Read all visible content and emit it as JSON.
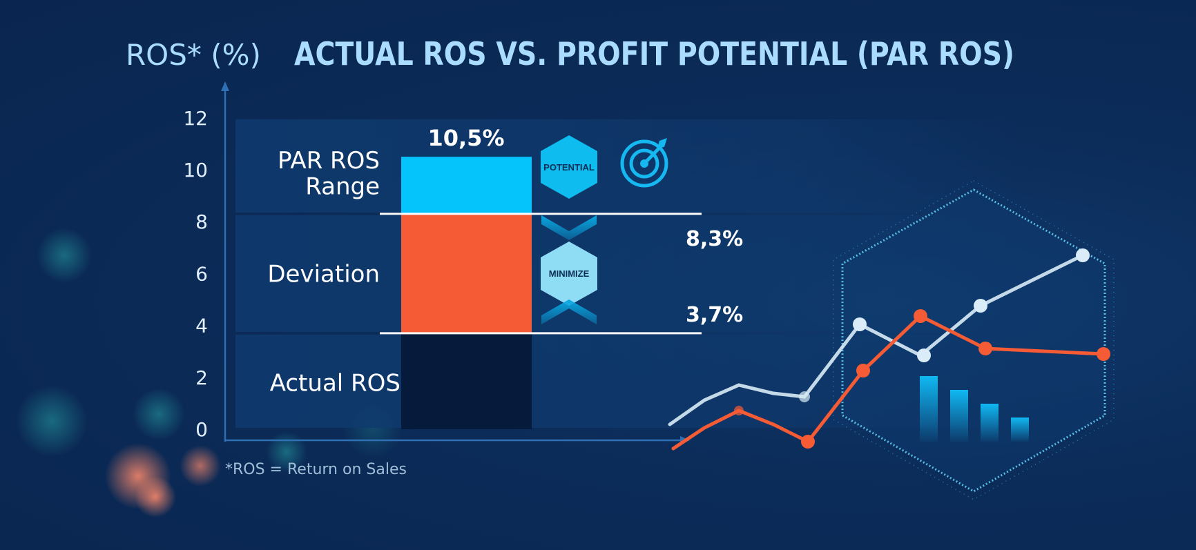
{
  "header": {
    "axis_title": "ROS* (%)",
    "title": "ACTUAL ROS VS. PROFIT POTENTIAL (PAR ROS)"
  },
  "chart_data": {
    "type": "bar",
    "ylim": [
      0,
      12
    ],
    "y_ticks": [
      "0",
      "2",
      "4",
      "6",
      "8",
      "10",
      "12"
    ],
    "bands": [
      {
        "label": "Actual ROS",
        "from": 0,
        "to": 3.7
      },
      {
        "label": "Deviation",
        "from": 3.7,
        "to": 8.3
      },
      {
        "label": "PAR ROS Range",
        "label_line1": "PAR ROS",
        "label_line2": "Range",
        "from": 8.3,
        "to": 12
      }
    ],
    "stack": [
      {
        "name": "Actual ROS",
        "from": 0,
        "to": 3.7,
        "color": "#061a3b"
      },
      {
        "name": "Deviation",
        "from": 3.7,
        "to": 8.3,
        "color": "#f55b35"
      },
      {
        "name": "PAR ROS Range",
        "from": 8.3,
        "to": 10.5,
        "color": "#05c3fb"
      }
    ],
    "value_labels": {
      "top": "10,5%",
      "upper": "8,3%",
      "lower": "3,7%"
    },
    "reference_lines": [
      3.7,
      8.3
    ]
  },
  "badges": {
    "potential": "POTENTIAL",
    "minimize": "MINIMIZE"
  },
  "icons": [
    "target-icon",
    "chevron-up-icon",
    "chevron-down-icon"
  ],
  "footnote": "*ROS = Return on Sales",
  "colors": {
    "title": "#a9dcff",
    "axis": "#2f6fb3",
    "par": "#05c3fb",
    "deviation": "#f55b35",
    "actual": "#061a3b",
    "badge_potential": "#0fbcf0",
    "badge_minimize": "#8fdcf5"
  }
}
